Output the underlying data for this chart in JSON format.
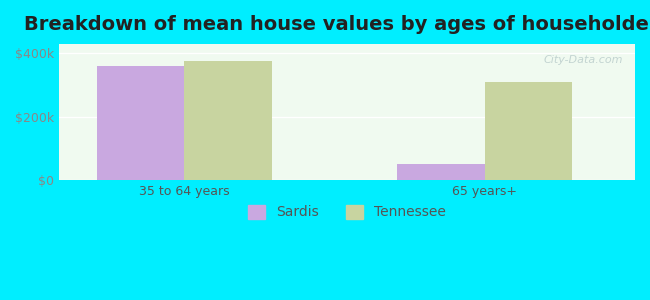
{
  "title": "Breakdown of mean house values by ages of householders",
  "categories": [
    "35 to 64 years",
    "65 years+"
  ],
  "sardis_values": [
    360000,
    50000
  ],
  "tennessee_values": [
    375000,
    310000
  ],
  "sardis_color": "#c9a8e0",
  "tennessee_color": "#c8d4a0",
  "background_color": "#00eeff",
  "plot_bg_color": "#f0faf0",
  "yticks": [
    0,
    200000,
    400000
  ],
  "ytick_labels": [
    "$0",
    "$200k",
    "$400k"
  ],
  "ylim": [
    0,
    430000
  ],
  "bar_width": 0.35,
  "legend_sardis": "Sardis",
  "legend_tennessee": "Tennessee",
  "title_fontsize": 14,
  "tick_fontsize": 9,
  "legend_fontsize": 10,
  "watermark": "City-Data.com"
}
